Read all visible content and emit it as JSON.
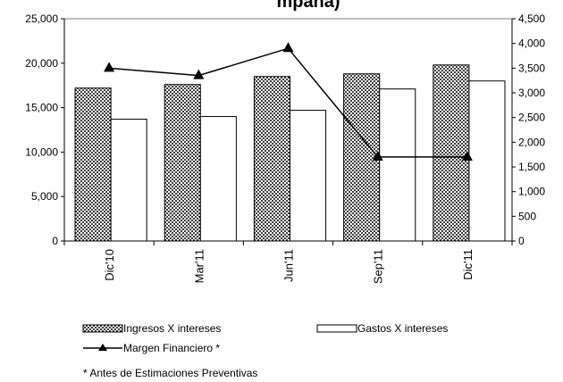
{
  "chart_data": {
    "type": "bar",
    "title": "mpaña)",
    "categories": [
      "Dic'10",
      "Mar'11",
      "Jun'11",
      "Sep'11",
      "Dic'11"
    ],
    "series": [
      {
        "name": "Ingresos X intereses",
        "type": "bar",
        "axis": "left",
        "pattern": "dotted",
        "values": [
          17200,
          17600,
          18500,
          18800,
          19800
        ]
      },
      {
        "name": "Gastos X intereses",
        "type": "bar",
        "axis": "left",
        "pattern": "white",
        "values": [
          13700,
          14000,
          14700,
          17100,
          18000
        ]
      },
      {
        "name": "Margen Financiero *",
        "type": "line",
        "axis": "right",
        "marker": "triangle",
        "values": [
          3500,
          3350,
          3900,
          1700,
          1700
        ]
      }
    ],
    "y_left": {
      "min": 0,
      "max": 25000,
      "ticks": [
        "0",
        "5,000",
        "10,000",
        "15,000",
        "20,000",
        "25,000"
      ]
    },
    "y_right": {
      "min": 0,
      "max": 4500,
      "ticks": [
        "0",
        "500",
        "1,000",
        "1,500",
        "2,000",
        "2,500",
        "3,000",
        "3,500",
        "4,000",
        "4,500"
      ]
    },
    "grid": false,
    "legend_position": "bottom",
    "footnote": "* Antes de Estimaciones Preventivas"
  }
}
